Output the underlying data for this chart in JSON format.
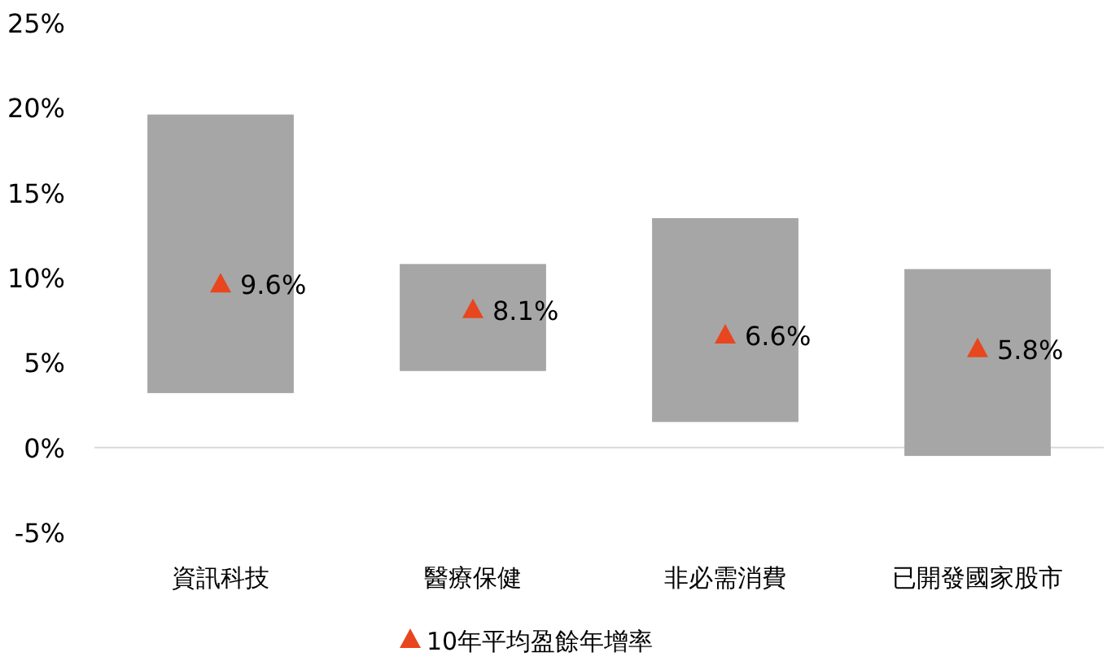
{
  "chart_data": {
    "type": "bar",
    "categories": [
      "資訊科技",
      "醫療保健",
      "非必需消費",
      "已開發國家股市"
    ],
    "series": [
      {
        "color": "#a6a6a6",
        "base": [
          3.2,
          4.5,
          1.5,
          -0.5
        ],
        "values": [
          16.4,
          6.3,
          12.0,
          11.0
        ]
      },
      {
        "type": "scatter",
        "name": "10年平均盈餘年增率",
        "color": "#e8461e",
        "marker": "triangle",
        "values": [
          9.6,
          8.1,
          6.6,
          5.8
        ],
        "value_labels": [
          "9.6%",
          "8.1%",
          "6.6%",
          "5.8%"
        ]
      }
    ],
    "ylim": [
      -5,
      25
    ],
    "yticks": [
      {
        "value": -5,
        "label": "-5%"
      },
      {
        "value": 0,
        "label": "0%"
      },
      {
        "value": 5,
        "label": "5%"
      },
      {
        "value": 10,
        "label": "10%"
      },
      {
        "value": 15,
        "label": "15%"
      },
      {
        "value": 20,
        "label": "20%"
      },
      {
        "value": 25,
        "label": "25%"
      }
    ],
    "ref_lines": [
      {
        "axis": "y",
        "value": 0,
        "color": "#d9d9d9",
        "line_style": "solid"
      }
    ],
    "legend": "bottom"
  }
}
